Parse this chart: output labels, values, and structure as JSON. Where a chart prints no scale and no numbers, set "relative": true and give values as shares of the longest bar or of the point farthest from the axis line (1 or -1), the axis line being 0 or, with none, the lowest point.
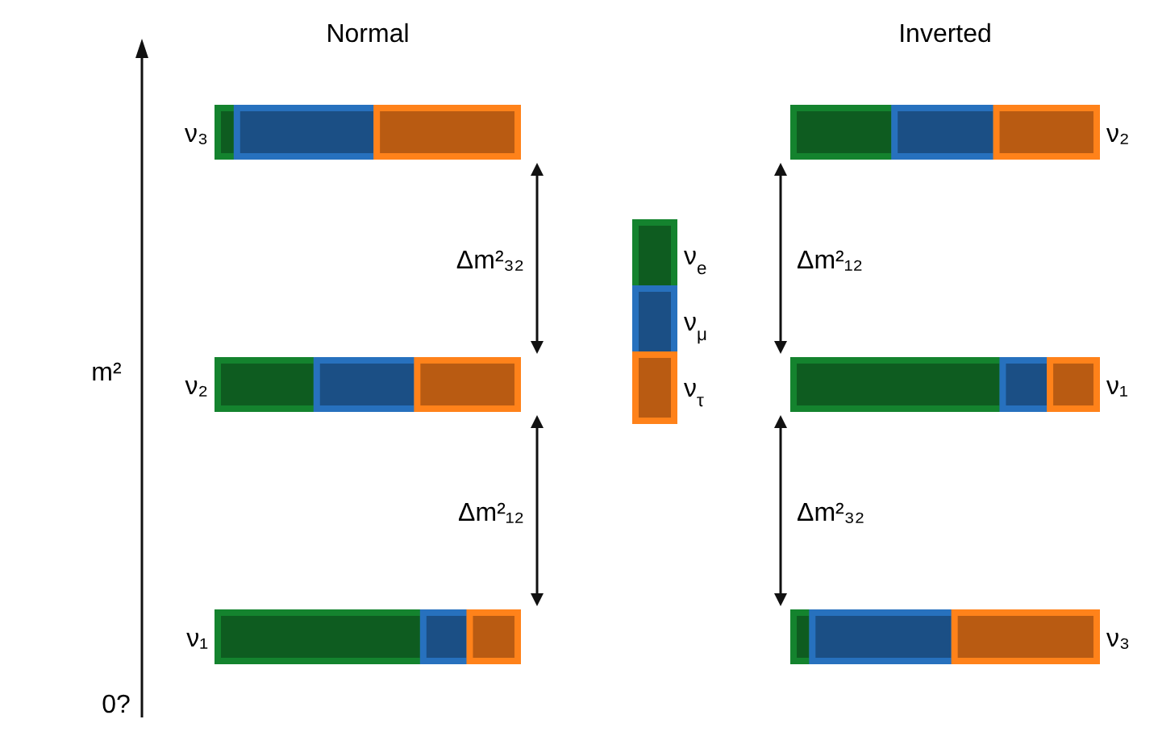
{
  "chart_data": [
    {
      "type": "bar",
      "title": "Normal",
      "ylabel": "m²",
      "orientation": "horizontal",
      "stacked": true,
      "relative": true,
      "categories": [
        "ν₃",
        "ν₂",
        "ν₁"
      ],
      "legend": "right",
      "series": [
        {
          "name": "ν$_{e}$",
          "color": "#0e5c20",
          "values": [
            0.064,
            0.33,
            0.685
          ]
        },
        {
          "name": "ν$_{μ}$",
          "color": "#1b4f85",
          "values": [
            0.466,
            0.335,
            0.155
          ]
        },
        {
          "name": "ν$_{τ}$",
          "color": "#b95b12",
          "values": [
            0.47,
            0.335,
            0.16
          ]
        }
      ],
      "annotations": [
        "Δm²₃₂",
        "Δm²₁₂",
        "0?"
      ]
    },
    {
      "type": "bar",
      "title": "Inverted",
      "orientation": "horizontal",
      "stacked": true,
      "relative": true,
      "categories": [
        "ν₂",
        "ν₁",
        "ν₃"
      ],
      "series": [
        {
          "color": "#0e5c20",
          "values": [
            0.333,
            0.69,
            0.062
          ]
        },
        {
          "color": "#1b4f85",
          "values": [
            0.336,
            0.156,
            0.469
          ]
        },
        {
          "color": "#b95b12",
          "values": [
            0.331,
            0.154,
            0.469
          ]
        }
      ],
      "annotations": [
        "Δm²₁₂",
        "Δm²₃₂"
      ]
    }
  ]
}
